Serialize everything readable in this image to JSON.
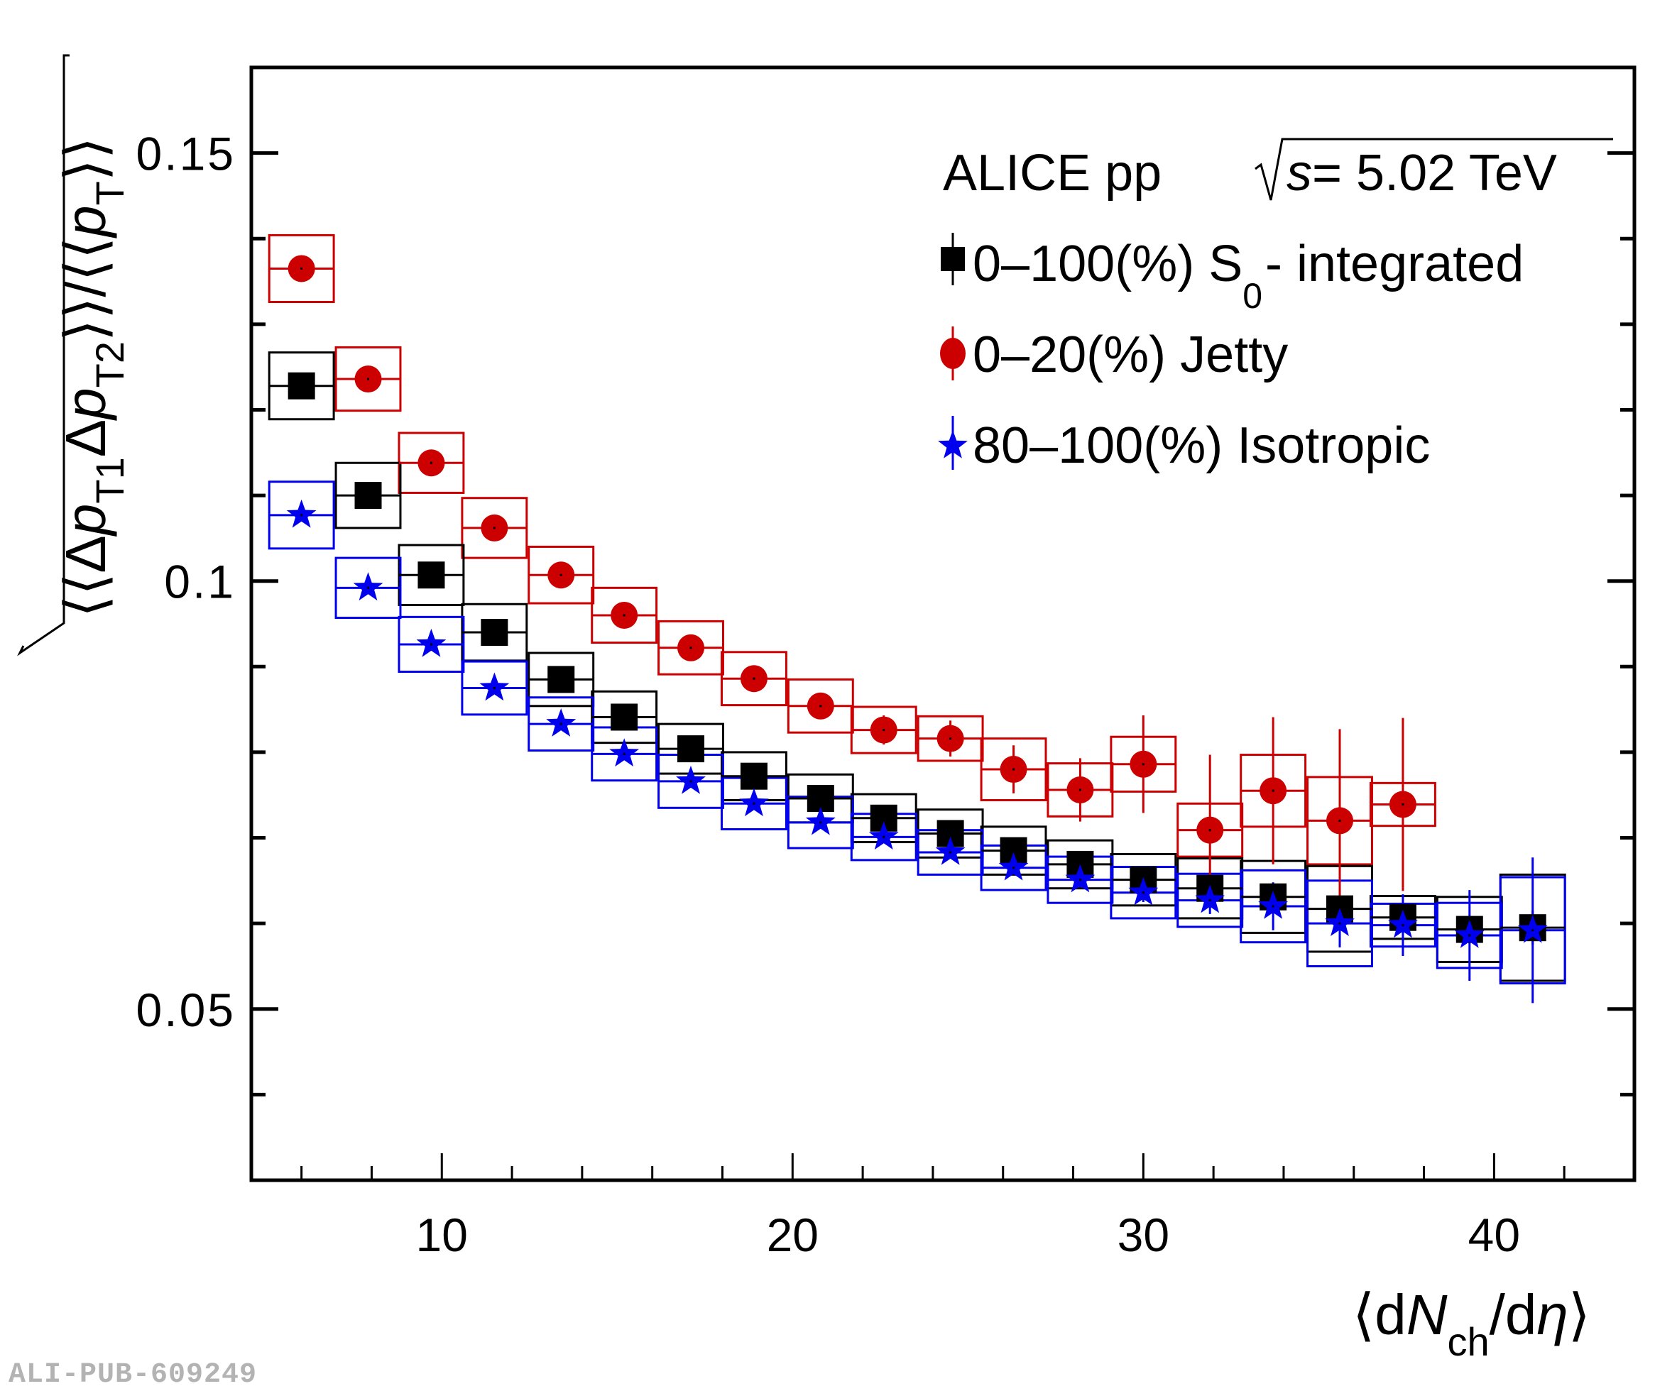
{
  "watermark": "ALI-PUB-609249",
  "chart_data": {
    "type": "scatter",
    "title": "",
    "annotation": {
      "experiment": "ALICE pp",
      "energy_prefix": "s",
      "energy_text": " = 5.02 TeV"
    },
    "xlabel": "⟨dN_ch/dη⟩",
    "xlabel_parts": {
      "open": "⟨d",
      "N": "N",
      "sub": "ch",
      "mid": "/d",
      "eta": "η",
      "close": "⟩"
    },
    "ylabel": "√⟨⟨Δp_T1 Δp_T2⟩⟩/⟨⟨p_T⟩⟩",
    "xlim": [
      4.57,
      44.0
    ],
    "ylim": [
      0.03,
      0.16
    ],
    "xticks_major": [
      10,
      20,
      30,
      40
    ],
    "xtick_labels": [
      "10",
      "20",
      "30",
      "40"
    ],
    "yticks_major": [
      0.05,
      0.1,
      0.15
    ],
    "ytick_labels": [
      "0.05",
      "0.1",
      "0.15"
    ],
    "grid": false,
    "legend_position": "top-right",
    "bin_width": 1.84,
    "x": [
      6.0,
      7.9,
      9.7,
      11.5,
      13.4,
      15.2,
      17.1,
      18.9,
      20.8,
      22.6,
      24.5,
      26.3,
      28.2,
      30.0,
      31.9,
      33.7,
      35.6,
      37.4,
      39.3,
      41.1
    ],
    "series": [
      {
        "name": "0–100(%) S0 - integrated",
        "legend_main": "0–100(%) S",
        "legend_sub": "0",
        "legend_tail": "- integrated",
        "marker": "square",
        "color": "#000000",
        "values": [
          0.1228,
          0.11,
          0.1007,
          0.094,
          0.0885,
          0.0841,
          0.0804,
          0.0772,
          0.0746,
          0.0723,
          0.0705,
          0.0685,
          0.0669,
          0.0651,
          0.0641,
          0.0631,
          0.0617,
          0.0607,
          0.0593,
          0.0595
        ],
        "stat_err": [
          0.0003,
          0.0003,
          0.0003,
          0.0003,
          0.0003,
          0.0003,
          0.0003,
          0.0004,
          0.0004,
          0.0005,
          0.0005,
          0.0006,
          0.0007,
          0.0008,
          0.0009,
          0.001,
          0.0012,
          0.0014,
          0.0016,
          0.002
        ],
        "sys_err": [
          0.0039,
          0.0038,
          0.0035,
          0.0033,
          0.0031,
          0.003,
          0.0029,
          0.0028,
          0.0028,
          0.0028,
          0.0028,
          0.0028,
          0.0028,
          0.003,
          0.0035,
          0.0042,
          0.005,
          0.0025,
          0.0038,
          0.0062
        ]
      },
      {
        "name": "0–20(%) Jetty",
        "legend_main": "0–20(%) Jetty",
        "legend_sub": "",
        "legend_tail": "",
        "marker": "circle",
        "color": "#cc0000",
        "values": [
          0.1365,
          0.1236,
          0.1138,
          0.1062,
          0.1007,
          0.096,
          0.0922,
          0.0886,
          0.0854,
          0.0826,
          0.0816,
          0.078,
          0.0756,
          0.0786,
          0.0709,
          0.0755,
          0.072,
          0.0739
        ],
        "stat_err": [
          0.0004,
          0.0004,
          0.0005,
          0.0006,
          0.0007,
          0.0008,
          0.001,
          0.0012,
          0.0014,
          0.0017,
          0.0021,
          0.0028,
          0.0037,
          0.0057,
          0.0088,
          0.0086,
          0.0107,
          0.0101
        ],
        "sys_err": [
          0.0039,
          0.0037,
          0.0035,
          0.0035,
          0.0033,
          0.0032,
          0.0031,
          0.0031,
          0.0031,
          0.0027,
          0.0026,
          0.0036,
          0.0031,
          0.0032,
          0.0031,
          0.0042,
          0.0051,
          0.0025
        ]
      },
      {
        "name": "80–100(%) Isotropic",
        "legend_main": "80–100(%) Isotropic",
        "legend_sub": "",
        "legend_tail": "",
        "marker": "star",
        "color": "#0000ee",
        "values": [
          0.1077,
          0.0992,
          0.0926,
          0.0875,
          0.0833,
          0.0798,
          0.0766,
          0.074,
          0.0718,
          0.0701,
          0.0683,
          0.0665,
          0.0651,
          0.0636,
          0.0627,
          0.062,
          0.06,
          0.0598,
          0.0586,
          0.0592
        ],
        "stat_err": [
          0.0003,
          0.0003,
          0.0003,
          0.0003,
          0.0003,
          0.0003,
          0.0004,
          0.0004,
          0.0005,
          0.0005,
          0.0006,
          0.0007,
          0.0009,
          0.0011,
          0.0016,
          0.0028,
          0.0028,
          0.0036,
          0.0053,
          0.0085
        ],
        "sys_err": [
          0.0039,
          0.0035,
          0.0032,
          0.0031,
          0.0031,
          0.0031,
          0.0031,
          0.003,
          0.003,
          0.0027,
          0.0026,
          0.0026,
          0.0027,
          0.003,
          0.0031,
          0.0042,
          0.005,
          0.0025,
          0.0038,
          0.0062
        ]
      }
    ]
  }
}
